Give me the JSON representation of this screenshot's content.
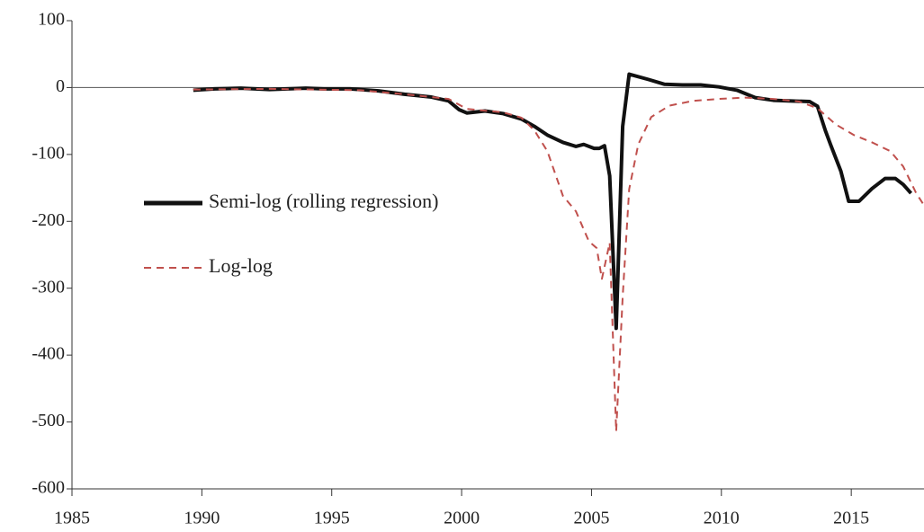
{
  "chart_data": {
    "type": "line",
    "xlim": [
      1985,
      2017.8
    ],
    "xticks": [
      1985,
      1990,
      1995,
      2000,
      2005,
      2010,
      2015
    ],
    "ylim": [
      -600,
      100
    ],
    "yticks": [
      -600,
      -500,
      -400,
      -300,
      -200,
      -100,
      0,
      100
    ],
    "legend": "left",
    "series": [
      {
        "name": "Semi-log (rolling regression)",
        "color": "#111111",
        "style": "solid",
        "x": [
          1989.67,
          1990.5,
          1991.5,
          1992.6,
          1994,
          1994.7,
          1995.7,
          1996.8,
          1997.8,
          1998.8,
          1999.5,
          1999.9,
          2000.2,
          2000.9,
          2001.6,
          2002.3,
          2002.8,
          2003.3,
          2003.9,
          2004.4,
          2004.7,
          2005.1,
          2005.3,
          2005.5,
          2005.7,
          2005.95,
          2006.2,
          2006.45,
          2007.2,
          2007.8,
          2008.5,
          2009.2,
          2009.9,
          2010.6,
          2011.3,
          2012,
          2012.7,
          2013.4,
          2013.7,
          2014,
          2014.2,
          2014.6,
          2014.9,
          2015.3,
          2015.8,
          2016.3,
          2016.7,
          2017,
          2017.3
        ],
        "values": [
          -4,
          -2,
          -1,
          -3,
          -1,
          -2,
          -2,
          -5,
          -10,
          -14,
          -20,
          -33,
          -38,
          -35,
          -39,
          -47,
          -58,
          -71,
          -82,
          -88,
          -85,
          -91,
          -91,
          -87,
          -132,
          -360,
          -58,
          20,
          12,
          5,
          4,
          4,
          1,
          -4,
          -15,
          -19,
          -20,
          -21,
          -28,
          -64,
          -85,
          -125,
          -170,
          -170,
          -151,
          -136,
          -136,
          -145,
          -158
        ]
      },
      {
        "name": "Log-log",
        "color": "#c0504d",
        "style": "dashed",
        "x": [
          1989.67,
          1992.6,
          1996.1,
          1997.8,
          1999.5,
          2000.2,
          2001.6,
          2002.3,
          2002.8,
          2003.3,
          2003.9,
          2004.4,
          2004.9,
          2005.2,
          2005.4,
          2005.7,
          2005.95,
          2006.2,
          2006.45,
          2006.8,
          2007.3,
          2008,
          2008.9,
          2009.9,
          2010.9,
          2012,
          2013,
          2013.7,
          2014.4,
          2015.1,
          2015.8,
          2016.5,
          2017,
          2017.5,
          2017.8
        ],
        "values": [
          -3,
          -2,
          -4,
          -10,
          -17,
          -32,
          -37,
          -45,
          -64,
          -95,
          -162,
          -185,
          -230,
          -240,
          -286,
          -232,
          -514,
          -313,
          -152,
          -85,
          -44,
          -27,
          -20,
          -17,
          -15,
          -17,
          -21,
          -31,
          -55,
          -71,
          -82,
          -95,
          -118,
          -158,
          -176
        ]
      }
    ]
  }
}
